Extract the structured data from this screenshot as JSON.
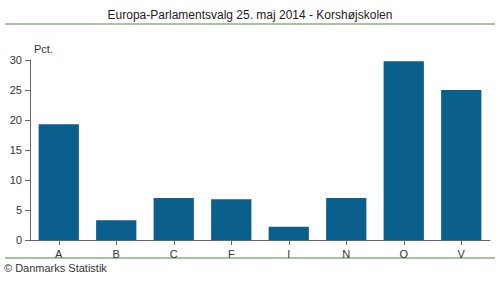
{
  "chart_data": {
    "type": "bar",
    "title": "Europa-Parlamentsvalg 25. maj 2014 - Korshøjskolen",
    "y_label": "Pct.",
    "categories": [
      "A",
      "B",
      "C",
      "F",
      "I",
      "N",
      "O",
      "V"
    ],
    "values": [
      19.3,
      3.3,
      7.0,
      6.8,
      2.2,
      7.0,
      29.8,
      25.0
    ],
    "color": "#0b5f8c",
    "ylim": [
      0,
      30
    ],
    "yticks": [
      0,
      5,
      10,
      15,
      20,
      25,
      30
    ],
    "grid": false,
    "annotations": [
      "© Danmarks Statistik"
    ]
  }
}
